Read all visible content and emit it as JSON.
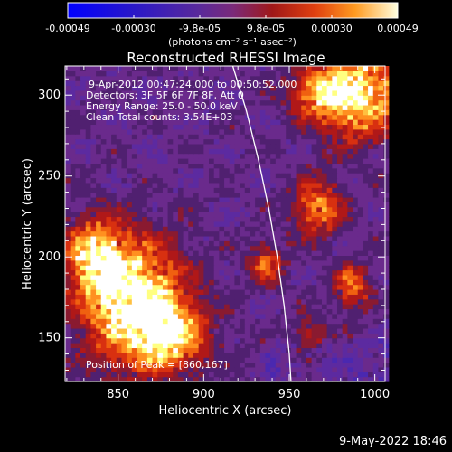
{
  "colorbar": {
    "tick_labels": [
      "-0.00049",
      "-0.00030",
      "-9.8e-05",
      "9.8e-05",
      "0.00030",
      "0.00049"
    ],
    "units": "(photons cm⁻² s⁻¹ asec⁻²)"
  },
  "chart_data": {
    "type": "heatmap",
    "title": "Reconstructed RHESSI Image",
    "xlabel": "Heliocentric X (arcsec)",
    "ylabel": "Heliocentric Y (arcsec)",
    "xlim": [
      819,
      1006
    ],
    "ylim": [
      123,
      318
    ],
    "x_ticks": [
      850,
      900,
      950,
      1000
    ],
    "y_ticks": [
      150,
      200,
      250,
      300
    ],
    "colorscale": [
      "#0000ff",
      "#3b1fbf",
      "#6a2fa0",
      "#a02020",
      "#e04010",
      "#ff9020",
      "#ffff60",
      "#ffffff"
    ],
    "colorbar_range": [
      -0.00049,
      0.00049
    ],
    "limb_curve_xy": [
      [
        917,
        318
      ],
      [
        925,
        290
      ],
      [
        932,
        260
      ],
      [
        938,
        230
      ],
      [
        943,
        200
      ],
      [
        947,
        170
      ],
      [
        950,
        140
      ],
      [
        951,
        123
      ]
    ],
    "hot_regions": [
      {
        "cx": 858,
        "cy": 170,
        "sx": 28,
        "sy": 36,
        "amp": 1.0
      },
      {
        "cx": 835,
        "cy": 200,
        "sx": 18,
        "sy": 22,
        "amp": 0.7
      },
      {
        "cx": 880,
        "cy": 150,
        "sx": 20,
        "sy": 20,
        "amp": 0.6
      },
      {
        "cx": 990,
        "cy": 300,
        "sx": 22,
        "sy": 26,
        "amp": 0.9
      },
      {
        "cx": 965,
        "cy": 300,
        "sx": 16,
        "sy": 14,
        "amp": 0.6
      },
      {
        "cx": 965,
        "cy": 230,
        "sx": 14,
        "sy": 18,
        "amp": 0.55
      },
      {
        "cx": 985,
        "cy": 180,
        "sx": 10,
        "sy": 14,
        "amp": 0.5
      },
      {
        "cx": 935,
        "cy": 195,
        "sx": 10,
        "sy": 12,
        "amp": 0.45
      },
      {
        "cx": 960,
        "cy": 150,
        "sx": 10,
        "sy": 10,
        "amp": 0.35
      }
    ],
    "info_lines": [
      "9-Apr-2012 00:47:24.000 to 00:50:52.000",
      "Detectors: 3F 5F 6F 7F 8F, Att 0",
      "Energy Range: 25.0 - 50.0 keV",
      "Clean     Total counts: 3.54E+03"
    ],
    "peak_text": "Position of Peak = [860,167]"
  },
  "footer": {
    "timestamp": "9-May-2022 18:46"
  }
}
